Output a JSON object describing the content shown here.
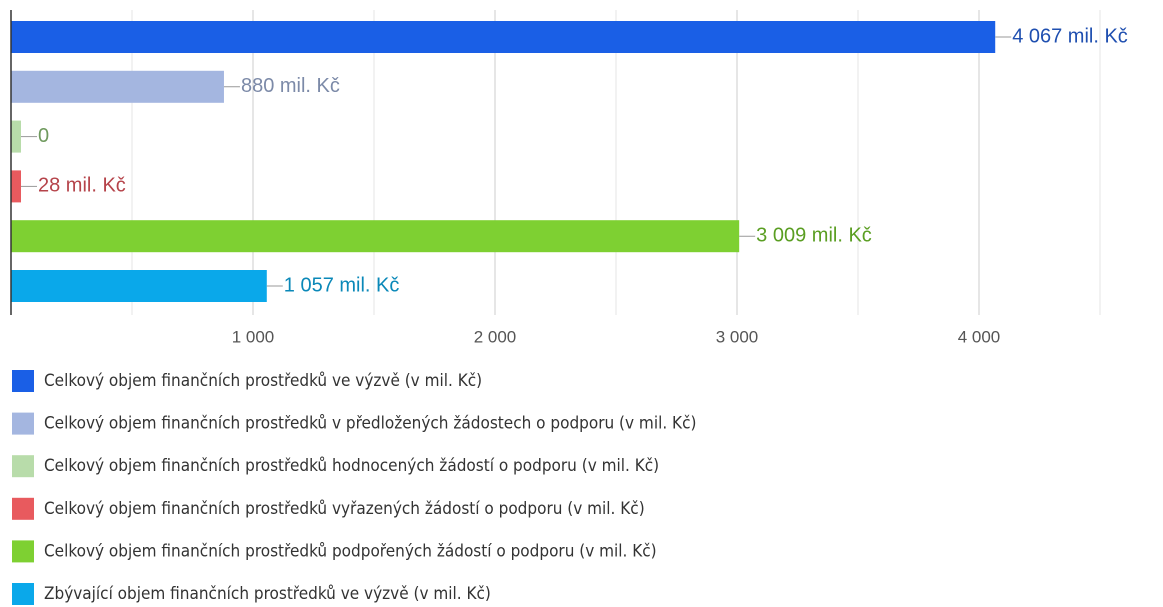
{
  "chart_data": {
    "type": "hbar",
    "series": [
      {
        "name": "Celkový objem finančních prostředků ve výzvě (v mil. Kč)",
        "color": "#1a5fe6",
        "label_color": "#1f4fb0",
        "values": [
          4067
        ],
        "value_labels": [
          "4 067 mil. Kč"
        ]
      },
      {
        "name": "Celkový objem finančních prostředků v předložených žádostech o podporu (v mil. Kč)",
        "color": "#a4b6e0",
        "label_color": "#7c8aa8",
        "values": [
          880
        ],
        "value_labels": [
          "880 mil. Kč"
        ]
      },
      {
        "name": "Celkový objem finančních prostředků hodnocených žádostí o podporu (v mil. Kč)",
        "color": "#b8dcaa",
        "label_color": "#6f9a5e",
        "values": [
          0
        ],
        "value_labels": [
          "0"
        ]
      },
      {
        "name": "Celkový objem finančních prostředků vyřazených žádostí o podporu (v mil. Kč)",
        "color": "#e85a5e",
        "label_color": "#b5434a",
        "values": [
          28
        ],
        "value_labels": [
          "28 mil. Kč"
        ]
      },
      {
        "name": "Celkový objem finančních prostředků podpořených žádostí o podporu (v mil. Kč)",
        "color": "#7ed032",
        "label_color": "#5a9e22",
        "values": [
          3009
        ],
        "value_labels": [
          "3 009 mil. Kč"
        ]
      },
      {
        "name": "Zbývající objem finančních prostředků ve výzvě (v mil. Kč)",
        "color": "#0aa8ea",
        "label_color": "#0a88b8",
        "values": [
          1057
        ],
        "value_labels": [
          "1 057 mil. Kč"
        ]
      }
    ],
    "xlim": [
      0,
      4500
    ],
    "xticks": [
      {
        "value": 1000,
        "label": "1 000"
      },
      {
        "value": 2000,
        "label": "2 000"
      },
      {
        "value": 3000,
        "label": "3 000"
      },
      {
        "value": 4000,
        "label": "4 000"
      }
    ],
    "minor_xticks": [
      500,
      1500,
      2500,
      3500,
      4500
    ],
    "grid": true,
    "legend": "bottom"
  }
}
